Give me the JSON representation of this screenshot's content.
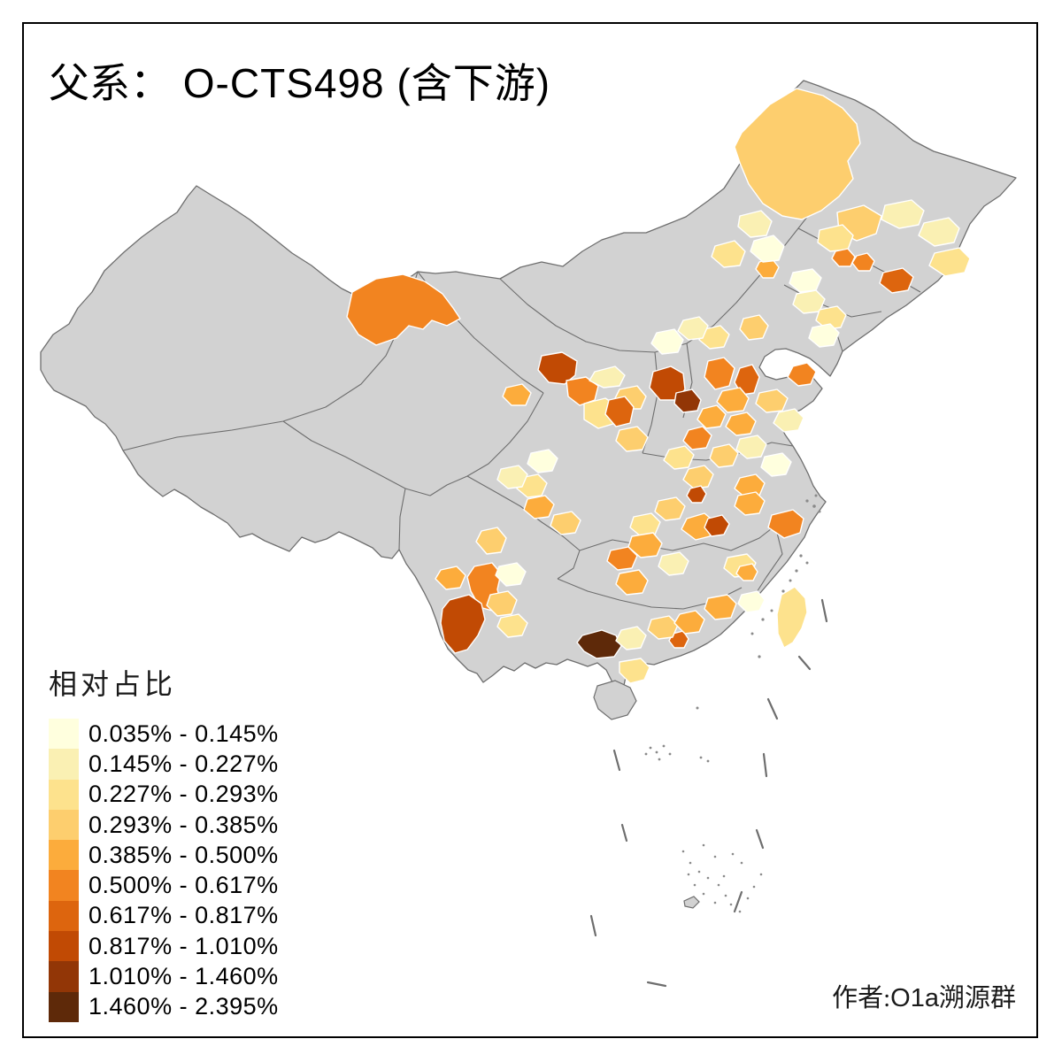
{
  "title": {
    "haplogroup_label": "父系：",
    "haplogroup_value": " O-CTS498 (含下游)"
  },
  "legend": {
    "title": "相对占比",
    "classes": [
      {
        "label": "0.035% - 0.145%",
        "color": "#FFFFDE"
      },
      {
        "label": "0.145% - 0.227%",
        "color": "#FAF0B3"
      },
      {
        "label": "0.227% - 0.293%",
        "color": "#FDE28D"
      },
      {
        "label": "0.293% - 0.385%",
        "color": "#FDCE6E"
      },
      {
        "label": "0.385% - 0.500%",
        "color": "#FCAC3C"
      },
      {
        "label": "0.500% - 0.617%",
        "color": "#F28420"
      },
      {
        "label": "0.617% - 0.817%",
        "color": "#DD650E"
      },
      {
        "label": "0.817% - 1.010%",
        "color": "#C14A04"
      },
      {
        "label": "1.010% - 1.460%",
        "color": "#923606"
      },
      {
        "label": "1.460% - 2.395%",
        "color": "#5E2909"
      }
    ]
  },
  "credit": {
    "text_zh_prefix": "作者:",
    "text_value": "O1a溯源群"
  },
  "map": {
    "no_data_color": "#D2D2D2",
    "boundary_color": "#6E6E6E",
    "prefecture_border_color": "#FFFFFF",
    "sea_color": "#FFFFFF"
  },
  "chart_data": {
    "type": "heatmap",
    "subtype": "choropleth-map-of-china-prefectures",
    "title": "父系： O-CTS498 (含下游)",
    "legend_title": "相对占比",
    "legend_position": "bottom-left",
    "bins": [
      {
        "range": [
          0.035,
          0.145
        ],
        "unit": "%",
        "color": "#FFFFDE"
      },
      {
        "range": [
          0.145,
          0.227
        ],
        "unit": "%",
        "color": "#FAF0B3"
      },
      {
        "range": [
          0.227,
          0.293
        ],
        "unit": "%",
        "color": "#FDE28D"
      },
      {
        "range": [
          0.293,
          0.385
        ],
        "unit": "%",
        "color": "#FDCE6E"
      },
      {
        "range": [
          0.385,
          0.5
        ],
        "unit": "%",
        "color": "#FCAC3C"
      },
      {
        "range": [
          0.5,
          0.617
        ],
        "unit": "%",
        "color": "#F28420"
      },
      {
        "range": [
          0.617,
          0.817
        ],
        "unit": "%",
        "color": "#DD650E"
      },
      {
        "range": [
          0.817,
          1.01
        ],
        "unit": "%",
        "color": "#C14A04"
      },
      {
        "range": [
          1.01,
          1.46
        ],
        "unit": "%",
        "color": "#923606"
      },
      {
        "range": [
          1.46,
          2.395
        ],
        "unit": "%",
        "color": "#5E2909"
      }
    ],
    "no_data_color": "#D2D2D2",
    "annotation": "作者:O1a溯源群"
  }
}
